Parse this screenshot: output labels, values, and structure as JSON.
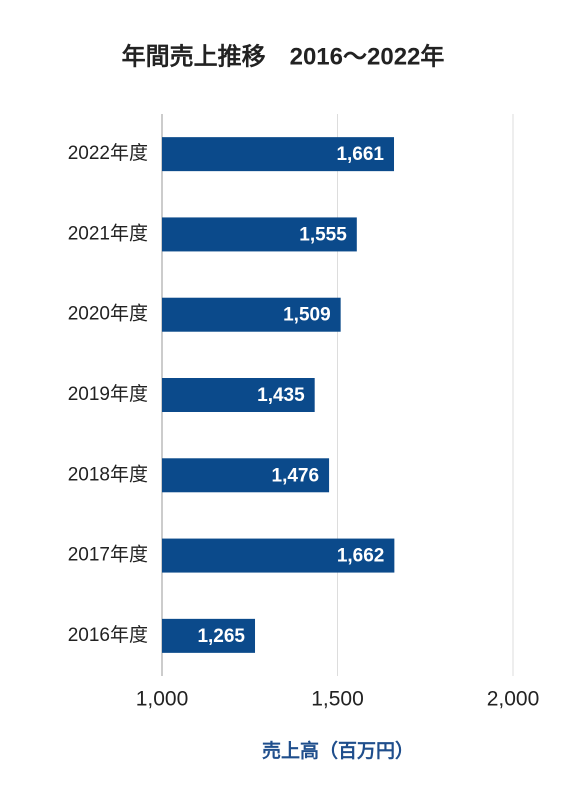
{
  "chart_data": {
    "type": "barh",
    "title": "年間売上推移　2016〜2022年",
    "xlabel": "売上高（百万円）",
    "categories": [
      "2022年度",
      "2021年度",
      "2020年度",
      "2019年度",
      "2018年度",
      "2017年度",
      "2016年度"
    ],
    "values": [
      1661,
      1555,
      1509,
      1435,
      1476,
      1662,
      1265
    ],
    "value_labels": [
      "1,661",
      "1,555",
      "1,509",
      "1,435",
      "1,476",
      "1,662",
      "1,265"
    ],
    "color": "#0b4a8b",
    "xlim": [
      1000,
      2000
    ],
    "xticks": [
      {
        "value": 1000,
        "label": "1,000"
      },
      {
        "value": 1500,
        "label": "1,500"
      },
      {
        "value": 2000,
        "label": "2,000"
      }
    ],
    "grid": true
  }
}
